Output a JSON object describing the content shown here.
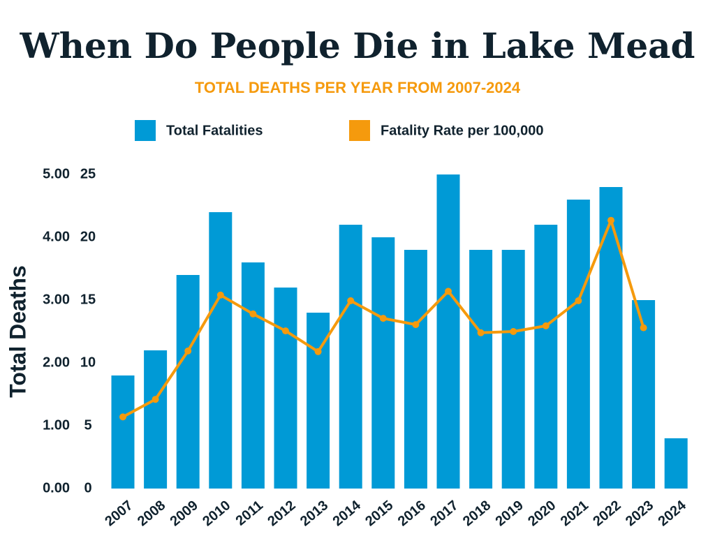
{
  "chart_data": {
    "type": "bar",
    "title": "When Do People Die in Lake Mead",
    "subtitle": "TOTAL DEATHS PER YEAR FROM 2007-2024",
    "y_label": "Total Deaths",
    "categories": [
      "2007",
      "2008",
      "2009",
      "2010",
      "2011",
      "2012",
      "2013",
      "2014",
      "2015",
      "2016",
      "2017",
      "2018",
      "2019",
      "2020",
      "2021",
      "2022",
      "2023",
      "2024"
    ],
    "series": [
      {
        "name": "Total Fatalities",
        "color": "#009ad6",
        "type": "bar",
        "values": [
          9,
          11,
          17,
          22,
          18,
          16,
          14,
          21,
          20,
          19,
          25,
          19,
          19,
          21,
          23,
          24,
          15,
          4
        ]
      },
      {
        "name": "Fatality Rate per 100,000",
        "color": "#f59a0d",
        "type": "line",
        "axis": "y2",
        "values": [
          1.14,
          1.42,
          2.19,
          3.08,
          2.78,
          2.51,
          2.18,
          2.99,
          2.71,
          2.61,
          3.14,
          2.48,
          2.5,
          2.59,
          2.99,
          4.27,
          2.56,
          null
        ]
      }
    ],
    "ylim": [
      0,
      25
    ],
    "yticks": [
      0,
      5,
      10,
      15,
      20,
      25
    ],
    "y2lim": [
      0,
      5
    ],
    "y2ticks": [
      {
        "value": 0,
        "label": "0.00"
      },
      {
        "value": 1,
        "label": "1.00"
      },
      {
        "value": 2,
        "label": "2.00"
      },
      {
        "value": 3,
        "label": "3.00"
      },
      {
        "value": 4,
        "label": "4.00"
      },
      {
        "value": 5,
        "label": "5.00"
      }
    ],
    "grid": false,
    "legend": "top"
  }
}
